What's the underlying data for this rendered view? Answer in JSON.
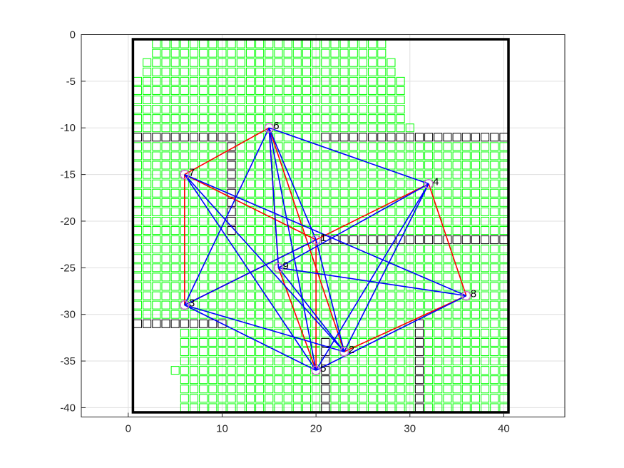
{
  "chart_data": {
    "type": "scatter",
    "title": "",
    "xlabel": "",
    "ylabel": "",
    "xlim": [
      -5,
      46.5
    ],
    "ylim": [
      -41,
      0
    ],
    "xticks": [
      0,
      10,
      20,
      30,
      40
    ],
    "yticks": [
      0,
      -5,
      -10,
      -15,
      -20,
      -25,
      -30,
      -35,
      -40
    ],
    "grid": true,
    "boundary": {
      "x": [
        0.5,
        40.5
      ],
      "y": [
        -40.5,
        -0.5
      ]
    },
    "nodes": [
      {
        "id": "1",
        "x": 20,
        "y": -22
      },
      {
        "id": "2",
        "x": 23,
        "y": -34
      },
      {
        "id": "3",
        "x": 6,
        "y": -29
      },
      {
        "id": "4",
        "x": 32,
        "y": -16
      },
      {
        "id": "5",
        "x": 20,
        "y": -36
      },
      {
        "id": "6",
        "x": 15,
        "y": -10
      },
      {
        "id": "7",
        "x": 6,
        "y": -15
      },
      {
        "id": "8",
        "x": 36,
        "y": -28
      },
      {
        "id": "9",
        "x": 16,
        "y": -25
      }
    ],
    "red_edges": [
      [
        "7",
        "6"
      ],
      [
        "6",
        "2"
      ],
      [
        "2",
        "8"
      ],
      [
        "8",
        "4"
      ],
      [
        "4",
        "3"
      ],
      [
        "3",
        "7"
      ],
      [
        "7",
        "1"
      ],
      [
        "1",
        "5"
      ],
      [
        "5",
        "9"
      ],
      [
        "9",
        "6"
      ]
    ],
    "blue_edges": [
      [
        "6",
        "4"
      ],
      [
        "6",
        "5"
      ],
      [
        "6",
        "3"
      ],
      [
        "6",
        "1"
      ],
      [
        "6",
        "9"
      ],
      [
        "7",
        "5"
      ],
      [
        "7",
        "2"
      ],
      [
        "7",
        "8"
      ],
      [
        "3",
        "2"
      ],
      [
        "3",
        "5"
      ],
      [
        "4",
        "5"
      ],
      [
        "4",
        "2"
      ],
      [
        "4",
        "9"
      ],
      [
        "9",
        "8"
      ],
      [
        "9",
        "2"
      ],
      [
        "1",
        "3"
      ],
      [
        "1",
        "2"
      ],
      [
        "5",
        "8"
      ]
    ],
    "obstacles": [
      {
        "x": [
          0.5,
          11.5
        ],
        "y": [
          -11,
          -10.5
        ]
      },
      {
        "x": [
          10.5,
          11.5
        ],
        "y": [
          -21.5,
          -11
        ]
      },
      {
        "x": [
          20.5,
          40.5
        ],
        "y": [
          -11,
          -10.5
        ]
      },
      {
        "x": [
          20.5,
          40.5
        ],
        "y": [
          -22.5,
          -21.5
        ]
      },
      {
        "x": [
          0.5,
          10.5
        ],
        "y": [
          -31.5,
          -30.5
        ]
      },
      {
        "x": [
          20.5,
          21.5
        ],
        "y": [
          -40.5,
          -32.5
        ]
      },
      {
        "x": [
          30.5,
          31.5
        ],
        "y": [
          -40.5,
          -30.5
        ]
      }
    ],
    "free_region": [
      {
        "x": [
          2.5,
          27.5
        ],
        "y": [
          -2.5,
          -0.5
        ]
      },
      {
        "x": [
          1.5,
          28.5
        ],
        "y": [
          -4.5,
          -2.5
        ]
      },
      {
        "x": [
          0.5,
          29.5
        ],
        "y": [
          -9.5,
          -4.5
        ]
      },
      {
        "x": [
          0.5,
          30.5
        ],
        "y": [
          -10.5,
          -9.5
        ]
      },
      {
        "x": [
          0.5,
          40.5
        ],
        "y": [
          -30.5,
          -10.5
        ]
      },
      {
        "x": [
          5.5,
          40.5
        ],
        "y": [
          -40.5,
          -30.5
        ]
      },
      {
        "x": [
          4.5,
          5.5
        ],
        "y": [
          -36.5,
          -35.5
        ]
      }
    ],
    "colors": {
      "edge_red": "#ff0000",
      "edge_blue": "#0000ff",
      "cell_free": "#00ff00",
      "cell_obstacle": "#000000",
      "node_marker": "#cc66cc"
    }
  }
}
